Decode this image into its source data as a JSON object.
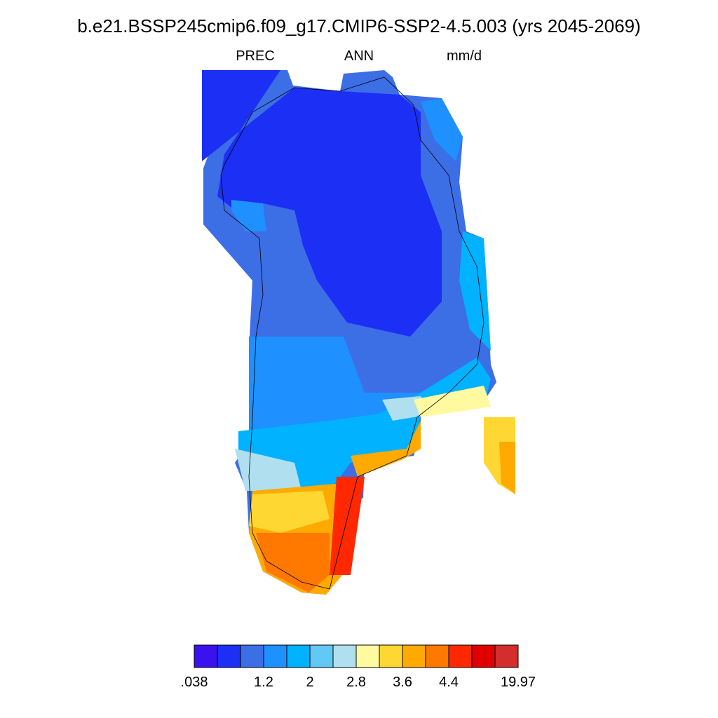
{
  "header": {
    "title": "b.e21.BSSP245cmip6.f09_g17.CMIP6-SSP2-4.5.003 (yrs 2045-2069)",
    "left": "PREC",
    "center": "ANN",
    "right": "mm/d"
  },
  "colorbar": {
    "colors": [
      "#3a12f0",
      "#1c2ff5",
      "#3c6ee6",
      "#1e90ff",
      "#00b2ff",
      "#62c8f5",
      "#b0e0f0",
      "#fffaa0",
      "#ffd732",
      "#ffaa00",
      "#ff7800",
      "#ff2800",
      "#e00000",
      "#d42d2d"
    ],
    "ticks": [
      {
        "value": 0.038,
        "label": ".038"
      },
      1.2,
      2,
      2.8,
      3.6,
      4.4,
      19.97
    ]
  }
}
